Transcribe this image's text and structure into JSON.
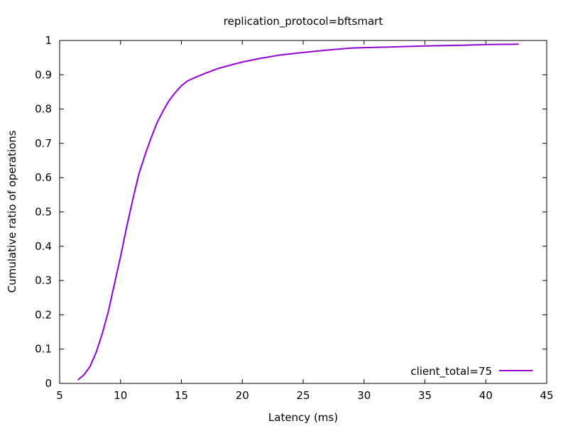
{
  "chart_data": {
    "type": "line",
    "title": "replication_protocol=bftsmart",
    "xlabel": "Latency (ms)",
    "ylabel": "Cumulative ratio of operations",
    "xlim": [
      5,
      45
    ],
    "ylim": [
      0,
      1
    ],
    "xticks": [
      5,
      10,
      15,
      20,
      25,
      30,
      35,
      40,
      45
    ],
    "yticks": [
      0,
      0.1,
      0.2,
      0.3,
      0.4,
      0.5,
      0.6,
      0.7,
      0.8,
      0.9,
      1
    ],
    "xtick_labels": [
      "5",
      "10",
      "15",
      "20",
      "25",
      "30",
      "35",
      "40",
      "45"
    ],
    "ytick_labels": [
      "0",
      "0.1",
      "0.2",
      "0.3",
      "0.4",
      "0.5",
      "0.6",
      "0.7",
      "0.8",
      "0.9",
      "1"
    ],
    "grid": false,
    "legend_position": "bottom-right",
    "series": [
      {
        "name": "client_total=75",
        "color": "#9400d3",
        "x": [
          6.5,
          7.0,
          7.5,
          8.0,
          8.5,
          9.0,
          9.5,
          10.0,
          10.5,
          11.0,
          11.5,
          12.0,
          12.5,
          13.0,
          13.5,
          14.0,
          14.5,
          15.0,
          15.5,
          16.0,
          17.0,
          18.0,
          19.0,
          20.0,
          21.5,
          23.0,
          25.0,
          27.0,
          29.0,
          32.0,
          35.0,
          38.0,
          40.0,
          42.7
        ],
        "y": [
          0.01,
          0.025,
          0.05,
          0.09,
          0.145,
          0.21,
          0.29,
          0.37,
          0.455,
          0.535,
          0.61,
          0.665,
          0.715,
          0.76,
          0.795,
          0.825,
          0.848,
          0.868,
          0.882,
          0.89,
          0.905,
          0.918,
          0.928,
          0.937,
          0.948,
          0.957,
          0.965,
          0.972,
          0.978,
          0.981,
          0.984,
          0.986,
          0.988,
          0.989
        ]
      }
    ]
  }
}
